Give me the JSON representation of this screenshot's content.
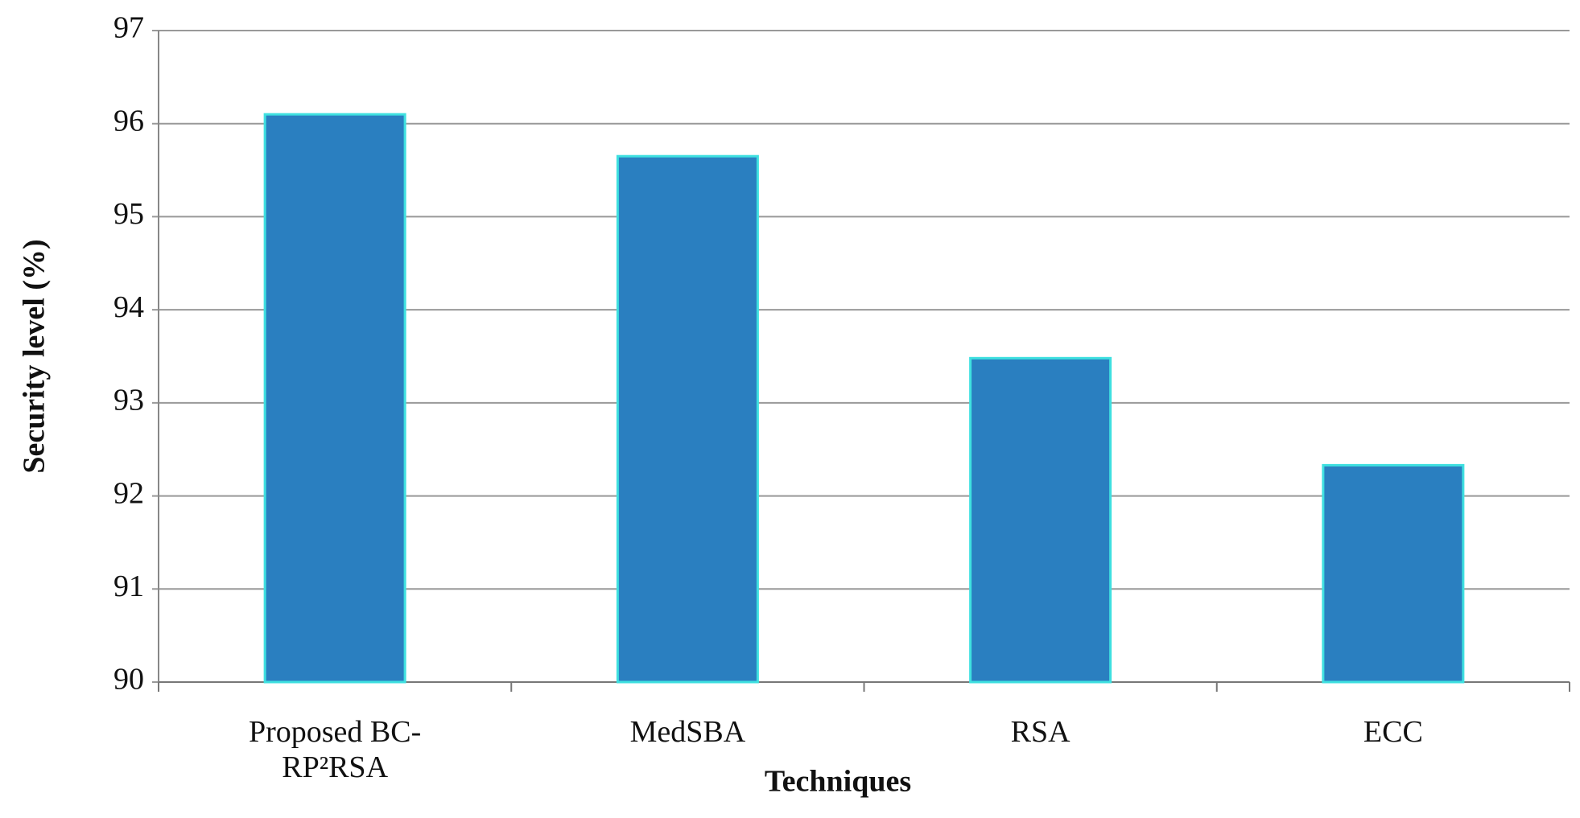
{
  "chart_data": {
    "type": "bar",
    "x_label": "Techniques",
    "y_label": "Security level (%)",
    "categories": [
      "Proposed BC-RP²RSA",
      "MedSBA",
      "RSA",
      "ECC"
    ],
    "values": [
      96.1,
      95.65,
      93.48,
      92.33
    ],
    "color": "#2a7fc0",
    "ylim": [
      90,
      97
    ],
    "yticks": [
      90,
      91,
      92,
      93,
      94,
      95,
      96,
      97
    ],
    "grid": true
  }
}
